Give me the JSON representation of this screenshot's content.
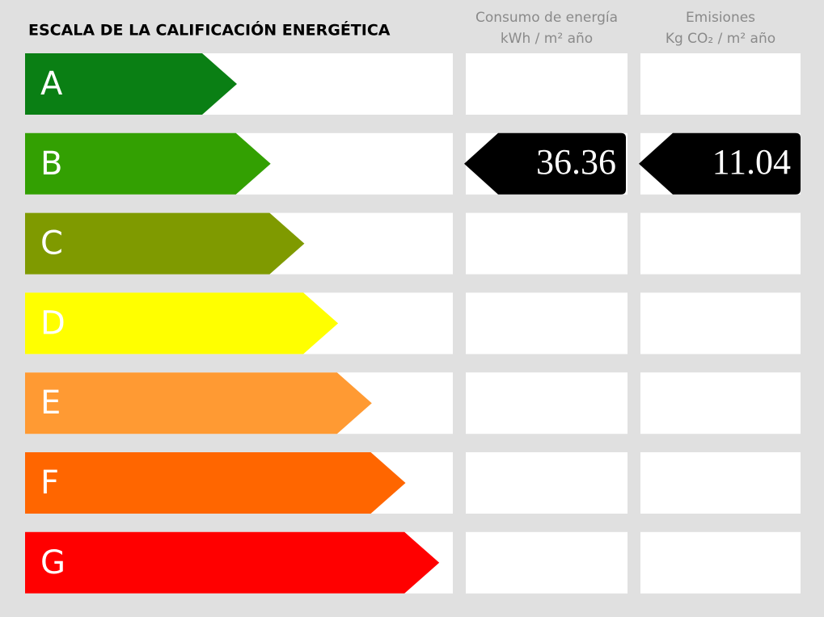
{
  "header": {
    "title": "ESCALA DE LA CALIFICACIÓN ENERGÉTICA",
    "consumption": [
      "Consumo de energía",
      "kWh / m² año"
    ],
    "emissions": [
      "Emisiones",
      "Kg CO₂ / m² año"
    ]
  },
  "grades": [
    {
      "letter": "A",
      "color": "#0a7f14"
    },
    {
      "letter": "B",
      "color": "#33a002"
    },
    {
      "letter": "C",
      "color": "#7f9a00"
    },
    {
      "letter": "D",
      "color": "#ffff00"
    },
    {
      "letter": "E",
      "color": "#ff9a33"
    },
    {
      "letter": "F",
      "color": "#ff6600"
    },
    {
      "letter": "G",
      "color": "#ff0000"
    }
  ],
  "consumption": {
    "grade": "B",
    "value": 36.36
  },
  "emissions": {
    "grade": "B",
    "value": 11.04
  }
}
